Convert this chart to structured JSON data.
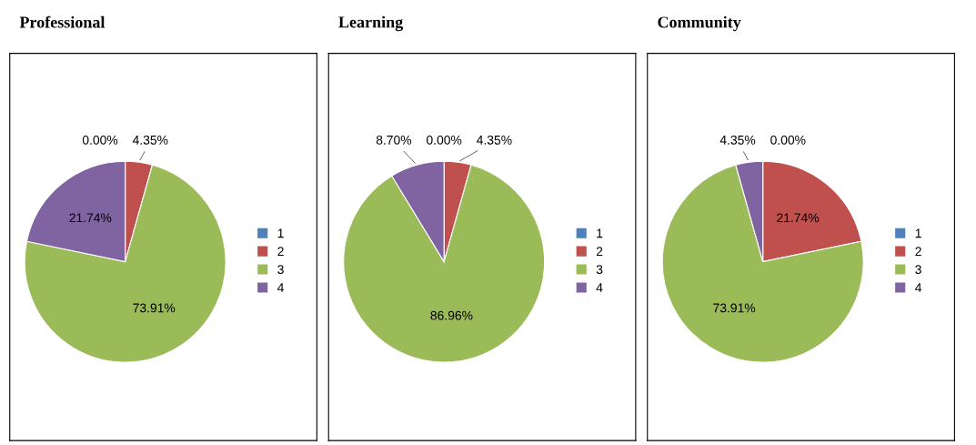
{
  "chart_data": [
    {
      "type": "pie",
      "title": "Professional",
      "categories": [
        "1",
        "2",
        "3",
        "4"
      ],
      "values": [
        0,
        4.35,
        73.91,
        21.74
      ],
      "colors": [
        "#4f81bd",
        "#c0504d",
        "#9bbb59",
        "#8064a2"
      ],
      "value_labels": [
        "0.00%",
        "4.35%",
        "73.91%",
        "21.74%"
      ],
      "legend": "right"
    },
    {
      "type": "pie",
      "title": "Learning",
      "categories": [
        "1",
        "2",
        "3",
        "4"
      ],
      "values": [
        0,
        4.35,
        86.96,
        8.7
      ],
      "colors": [
        "#4f81bd",
        "#c0504d",
        "#9bbb59",
        "#8064a2"
      ],
      "value_labels": [
        "0.00%",
        "4.35%",
        "86.96%",
        "8.70%"
      ],
      "legend": "right"
    },
    {
      "type": "pie",
      "title": "Community",
      "categories": [
        "1",
        "2",
        "3",
        "4"
      ],
      "values": [
        0,
        21.74,
        73.91,
        4.35
      ],
      "colors": [
        "#4f81bd",
        "#c0504d",
        "#9bbb59",
        "#8064a2"
      ],
      "value_labels": [
        "0.00%",
        "21.74%",
        "73.91%",
        "4.35%"
      ],
      "legend": "right"
    }
  ]
}
